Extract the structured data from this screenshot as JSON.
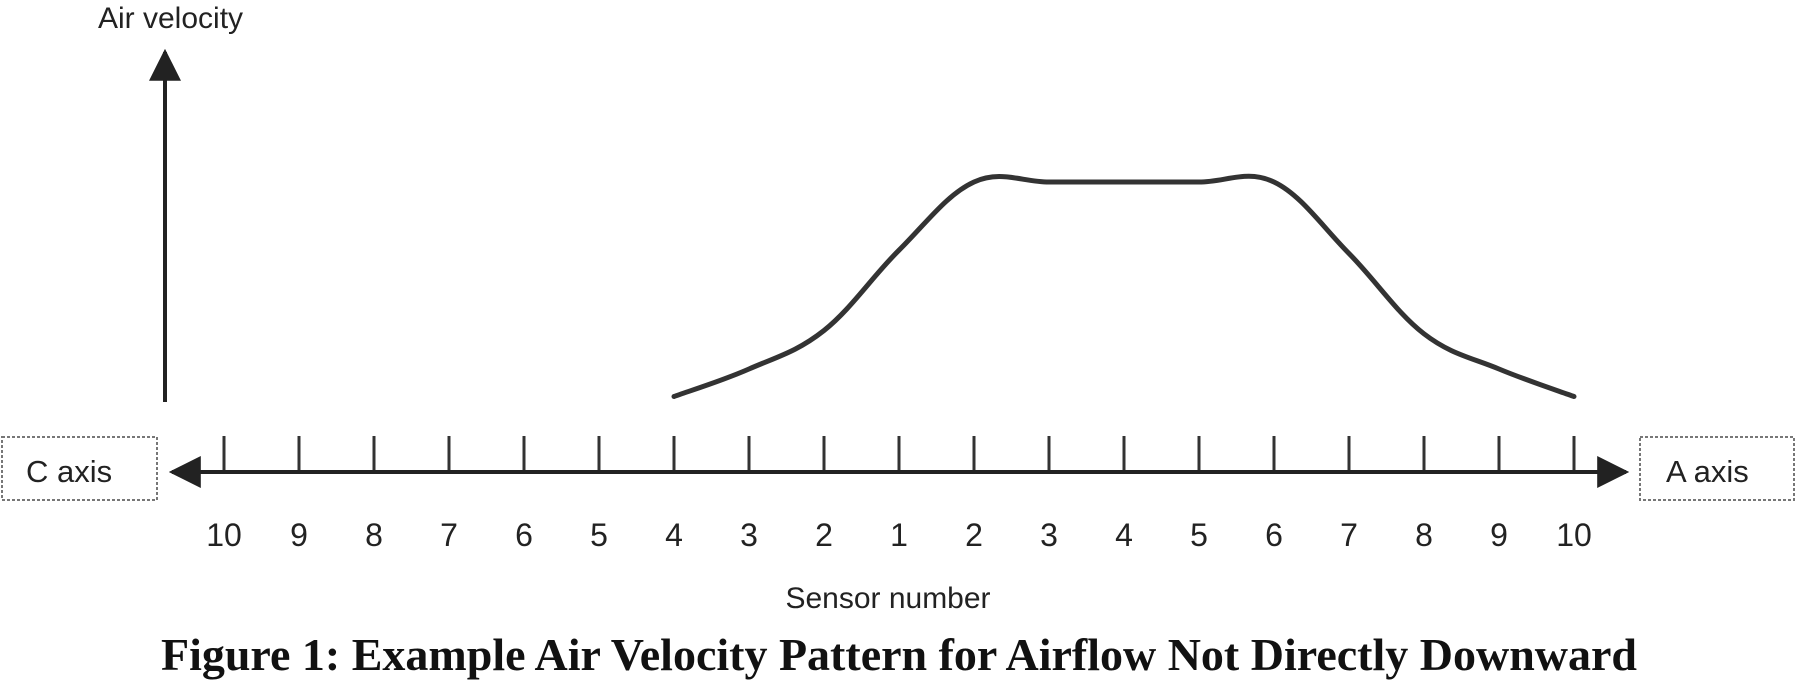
{
  "chart_data": {
    "type": "line",
    "ylabel": "Air velocity",
    "xlabel": "Sensor number",
    "left_axis_label": "C axis",
    "right_axis_label": "A axis",
    "categories": [
      "10",
      "9",
      "8",
      "7",
      "6",
      "5",
      "4",
      "3",
      "2",
      "1",
      "2",
      "3",
      "4",
      "5",
      "6",
      "7",
      "8",
      "9",
      "10"
    ],
    "series": [
      {
        "values": [
          null,
          null,
          null,
          null,
          null,
          null,
          0.05,
          0.3,
          0.65,
          1.38,
          2.0,
          2.0,
          2.0,
          2.0,
          2.0,
          1.35,
          0.62,
          0.3,
          0.05
        ]
      }
    ],
    "ylim": [
      0,
      2.4
    ],
    "grid": false,
    "title": ""
  },
  "caption": "Figure 1: Example Air Velocity Pattern for Airflow Not Directly Downward"
}
